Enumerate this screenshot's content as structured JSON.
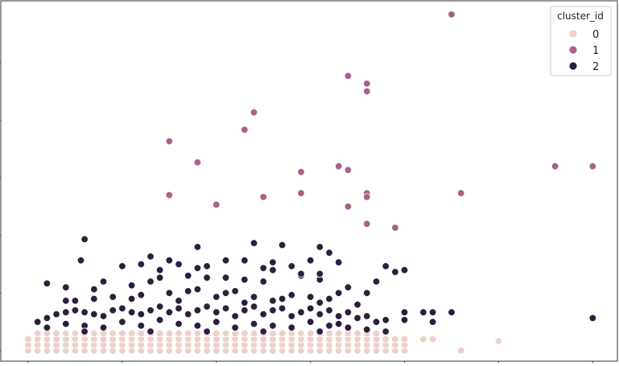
{
  "chart_data": {
    "type": "scatter",
    "title": "",
    "xlabel": "",
    "ylabel": "",
    "xlim": [
      0,
      30.5
    ],
    "ylim": [
      0,
      18
    ],
    "xticks": [
      0,
      5,
      10,
      15,
      20,
      25,
      30
    ],
    "yticks": [
      0,
      3,
      6,
      9,
      12,
      15
    ],
    "tick_labels_visible": false,
    "grid": false,
    "legend": {
      "title": "cluster_id",
      "placement": "top-right",
      "labels": [
        "0",
        "1",
        "2"
      ]
    },
    "series": [
      {
        "name": "0",
        "color": "#ecd0c9",
        "points": [
          [
            0.0,
            0.0
          ],
          [
            0.0,
            0.3
          ],
          [
            0.0,
            0.6
          ],
          [
            0.5,
            0.0
          ],
          [
            0.5,
            0.3
          ],
          [
            0.5,
            0.6
          ],
          [
            0.5,
            0.9
          ],
          [
            1.0,
            0.0
          ],
          [
            1.0,
            0.3
          ],
          [
            1.0,
            0.6
          ],
          [
            1.0,
            0.9
          ],
          [
            1.5,
            0.0
          ],
          [
            1.5,
            0.3
          ],
          [
            1.5,
            0.6
          ],
          [
            1.5,
            0.9
          ],
          [
            2.0,
            0.0
          ],
          [
            2.0,
            0.3
          ],
          [
            2.0,
            0.6
          ],
          [
            2.0,
            0.9
          ],
          [
            2.5,
            0.0
          ],
          [
            2.5,
            0.3
          ],
          [
            2.5,
            0.6
          ],
          [
            2.5,
            0.9
          ],
          [
            3.0,
            0.0
          ],
          [
            3.0,
            0.3
          ],
          [
            3.0,
            0.6
          ],
          [
            3.0,
            0.9
          ],
          [
            3.5,
            0.0
          ],
          [
            3.5,
            0.3
          ],
          [
            3.5,
            0.6
          ],
          [
            3.5,
            0.9
          ],
          [
            4.0,
            0.0
          ],
          [
            4.0,
            0.3
          ],
          [
            4.0,
            0.6
          ],
          [
            4.0,
            0.9
          ],
          [
            4.5,
            0.0
          ],
          [
            4.5,
            0.3
          ],
          [
            4.5,
            0.6
          ],
          [
            4.5,
            0.9
          ],
          [
            5.0,
            0.0
          ],
          [
            5.0,
            0.3
          ],
          [
            5.0,
            0.6
          ],
          [
            5.0,
            0.9
          ],
          [
            5.5,
            0.0
          ],
          [
            5.5,
            0.3
          ],
          [
            5.5,
            0.6
          ],
          [
            5.5,
            0.9
          ],
          [
            6.0,
            0.0
          ],
          [
            6.0,
            0.3
          ],
          [
            6.0,
            0.6
          ],
          [
            6.0,
            0.9
          ],
          [
            6.5,
            0.0
          ],
          [
            6.5,
            0.3
          ],
          [
            6.5,
            0.6
          ],
          [
            6.5,
            0.9
          ],
          [
            7.0,
            0.0
          ],
          [
            7.0,
            0.3
          ],
          [
            7.0,
            0.6
          ],
          [
            7.0,
            0.9
          ],
          [
            7.5,
            0.0
          ],
          [
            7.5,
            0.3
          ],
          [
            7.5,
            0.6
          ],
          [
            7.5,
            0.9
          ],
          [
            8.0,
            0.0
          ],
          [
            8.0,
            0.3
          ],
          [
            8.0,
            0.6
          ],
          [
            8.0,
            0.9
          ],
          [
            8.5,
            0.0
          ],
          [
            8.5,
            0.3
          ],
          [
            8.5,
            0.6
          ],
          [
            8.5,
            0.9
          ],
          [
            9.0,
            0.0
          ],
          [
            9.0,
            0.3
          ],
          [
            9.0,
            0.6
          ],
          [
            9.0,
            0.9
          ],
          [
            9.5,
            0.0
          ],
          [
            9.5,
            0.3
          ],
          [
            9.5,
            0.6
          ],
          [
            9.5,
            0.9
          ],
          [
            10.0,
            0.0
          ],
          [
            10.0,
            0.3
          ],
          [
            10.0,
            0.6
          ],
          [
            10.0,
            0.9
          ],
          [
            10.5,
            0.0
          ],
          [
            10.5,
            0.3
          ],
          [
            10.5,
            0.6
          ],
          [
            10.5,
            0.9
          ],
          [
            11.0,
            0.0
          ],
          [
            11.0,
            0.3
          ],
          [
            11.0,
            0.6
          ],
          [
            11.0,
            0.9
          ],
          [
            11.5,
            0.0
          ],
          [
            11.5,
            0.3
          ],
          [
            11.5,
            0.6
          ],
          [
            11.5,
            0.9
          ],
          [
            12.0,
            0.0
          ],
          [
            12.0,
            0.3
          ],
          [
            12.0,
            0.6
          ],
          [
            12.0,
            0.9
          ],
          [
            12.5,
            0.0
          ],
          [
            12.5,
            0.3
          ],
          [
            12.5,
            0.6
          ],
          [
            12.5,
            0.9
          ],
          [
            13.0,
            0.0
          ],
          [
            13.0,
            0.3
          ],
          [
            13.0,
            0.6
          ],
          [
            13.0,
            0.9
          ],
          [
            13.5,
            0.0
          ],
          [
            13.5,
            0.3
          ],
          [
            13.5,
            0.6
          ],
          [
            13.5,
            0.9
          ],
          [
            14.0,
            0.0
          ],
          [
            14.0,
            0.3
          ],
          [
            14.0,
            0.6
          ],
          [
            14.0,
            0.9
          ],
          [
            14.5,
            0.0
          ],
          [
            14.5,
            0.3
          ],
          [
            14.5,
            0.6
          ],
          [
            14.5,
            0.9
          ],
          [
            15.0,
            0.0
          ],
          [
            15.0,
            0.3
          ],
          [
            15.0,
            0.6
          ],
          [
            15.0,
            0.9
          ],
          [
            15.5,
            0.0
          ],
          [
            15.5,
            0.3
          ],
          [
            15.5,
            0.6
          ],
          [
            15.5,
            0.9
          ],
          [
            16.0,
            0.0
          ],
          [
            16.0,
            0.3
          ],
          [
            16.0,
            0.6
          ],
          [
            16.0,
            0.9
          ],
          [
            16.5,
            0.0
          ],
          [
            16.5,
            0.3
          ],
          [
            16.5,
            0.6
          ],
          [
            16.5,
            0.9
          ],
          [
            17.0,
            0.0
          ],
          [
            17.0,
            0.3
          ],
          [
            17.0,
            0.6
          ],
          [
            17.0,
            0.9
          ],
          [
            17.5,
            0.0
          ],
          [
            17.5,
            0.3
          ],
          [
            17.5,
            0.6
          ],
          [
            17.5,
            0.9
          ],
          [
            18.0,
            0.0
          ],
          [
            18.0,
            0.3
          ],
          [
            18.0,
            0.6
          ],
          [
            18.0,
            0.9
          ],
          [
            18.5,
            0.0
          ],
          [
            18.5,
            0.3
          ],
          [
            18.5,
            0.6
          ],
          [
            18.5,
            0.9
          ],
          [
            19.0,
            0.0
          ],
          [
            19.0,
            0.3
          ],
          [
            19.0,
            0.6
          ],
          [
            19.5,
            0.0
          ],
          [
            19.5,
            0.3
          ],
          [
            19.5,
            0.6
          ],
          [
            20.0,
            0.0
          ],
          [
            20.0,
            0.3
          ],
          [
            20.0,
            0.6
          ],
          [
            21.0,
            0.6
          ],
          [
            21.5,
            0.6
          ],
          [
            23.0,
            0.0
          ],
          [
            25.0,
            0.5
          ]
        ]
      },
      {
        "name": "1",
        "color": "#a8608c",
        "points": [
          [
            22.5,
            17.5
          ],
          [
            17.0,
            14.3
          ],
          [
            18.0,
            13.9
          ],
          [
            18.0,
            13.5
          ],
          [
            12.0,
            12.4
          ],
          [
            11.5,
            11.5
          ],
          [
            7.5,
            10.9
          ],
          [
            9.0,
            9.8
          ],
          [
            28.0,
            9.6
          ],
          [
            30.0,
            9.6
          ],
          [
            16.5,
            9.6
          ],
          [
            17.0,
            9.4
          ],
          [
            14.5,
            9.3
          ],
          [
            7.5,
            8.1
          ],
          [
            14.5,
            8.2
          ],
          [
            18.0,
            8.2
          ],
          [
            18.0,
            8.0
          ],
          [
            23.0,
            8.2
          ],
          [
            12.5,
            8.0
          ],
          [
            10.0,
            7.6
          ],
          [
            17.0,
            7.5
          ],
          [
            18.0,
            6.6
          ],
          [
            19.5,
            6.4
          ]
        ]
      },
      {
        "name": "2",
        "color": "#2d1e3e",
        "points": [
          [
            3.0,
            5.8
          ],
          [
            2.8,
            4.7
          ],
          [
            16.0,
            5.1
          ],
          [
            9.0,
            5.4
          ],
          [
            12.0,
            5.6
          ],
          [
            13.5,
            5.5
          ],
          [
            15.5,
            5.4
          ],
          [
            6.5,
            4.9
          ],
          [
            5.0,
            4.4
          ],
          [
            6.0,
            4.5
          ],
          [
            7.5,
            4.7
          ],
          [
            8.0,
            4.5
          ],
          [
            10.5,
            4.7
          ],
          [
            11.5,
            4.7
          ],
          [
            13.0,
            4.6
          ],
          [
            14.0,
            4.4
          ],
          [
            15.0,
            4.7
          ],
          [
            16.5,
            4.6
          ],
          [
            19.0,
            4.4
          ],
          [
            19.5,
            4.1
          ],
          [
            20.0,
            4.2
          ],
          [
            1.0,
            3.5
          ],
          [
            2.0,
            3.3
          ],
          [
            3.5,
            3.2
          ],
          [
            4.0,
            3.6
          ],
          [
            8.5,
            3.9
          ],
          [
            18.5,
            3.6
          ],
          [
            6.5,
            3.6
          ],
          [
            5.5,
            3.4
          ],
          [
            7.0,
            3.8
          ],
          [
            9.5,
            3.8
          ],
          [
            10.5,
            3.8
          ],
          [
            11.5,
            3.7
          ],
          [
            12.5,
            3.6
          ],
          [
            14.5,
            3.9
          ],
          [
            15.5,
            3.7
          ],
          [
            17.0,
            3.3
          ],
          [
            18.0,
            3.0
          ],
          [
            7.0,
            4.2
          ],
          [
            9.0,
            4.3
          ],
          [
            9.5,
            4.4
          ],
          [
            12.5,
            4.3
          ],
          [
            13.0,
            4.2
          ],
          [
            14.5,
            4.0
          ],
          [
            15.5,
            4.0
          ],
          [
            2.0,
            2.6
          ],
          [
            3.5,
            2.7
          ],
          [
            4.5,
            2.8
          ],
          [
            6.0,
            2.9
          ],
          [
            7.5,
            3.0
          ],
          [
            8.5,
            3.1
          ],
          [
            9.0,
            3.2
          ],
          [
            10.5,
            3.0
          ],
          [
            11.0,
            3.1
          ],
          [
            12.0,
            2.8
          ],
          [
            13.0,
            2.6
          ],
          [
            14.0,
            2.9
          ],
          [
            15.0,
            2.8
          ],
          [
            16.0,
            2.7
          ],
          [
            16.5,
            3.0
          ],
          [
            17.5,
            2.4
          ],
          [
            20.0,
            2.0
          ],
          [
            21.0,
            2.0
          ],
          [
            21.5,
            2.0
          ],
          [
            22.5,
            2.0
          ],
          [
            21.5,
            1.5
          ],
          [
            20.0,
            1.6
          ],
          [
            30.0,
            1.7
          ],
          [
            0.5,
            1.5
          ],
          [
            1.0,
            1.7
          ],
          [
            1.5,
            1.9
          ],
          [
            2.0,
            2.0
          ],
          [
            2.5,
            2.1
          ],
          [
            3.0,
            2.0
          ],
          [
            3.5,
            1.9
          ],
          [
            4.0,
            1.8
          ],
          [
            4.5,
            2.1
          ],
          [
            5.0,
            2.2
          ],
          [
            5.5,
            2.0
          ],
          [
            6.0,
            1.9
          ],
          [
            6.5,
            2.1
          ],
          [
            7.0,
            2.3
          ],
          [
            7.5,
            2.0
          ],
          [
            8.0,
            2.2
          ],
          [
            8.5,
            1.9
          ],
          [
            9.0,
            2.1
          ],
          [
            9.5,
            2.3
          ],
          [
            10.0,
            2.0
          ],
          [
            10.5,
            2.2
          ],
          [
            11.0,
            1.8
          ],
          [
            11.5,
            2.1
          ],
          [
            12.0,
            2.3
          ],
          [
            12.5,
            1.9
          ],
          [
            13.0,
            2.1
          ],
          [
            13.5,
            2.2
          ],
          [
            14.0,
            1.8
          ],
          [
            14.5,
            2.0
          ],
          [
            15.0,
            2.2
          ],
          [
            15.5,
            1.9
          ],
          [
            16.0,
            2.1
          ],
          [
            16.5,
            1.8
          ],
          [
            17.0,
            2.0
          ],
          [
            17.5,
            1.7
          ],
          [
            18.0,
            1.8
          ],
          [
            18.5,
            1.5
          ],
          [
            19.0,
            1.6
          ],
          [
            1.0,
            1.2
          ],
          [
            2.0,
            1.4
          ],
          [
            3.0,
            1.3
          ],
          [
            4.0,
            1.2
          ],
          [
            5.0,
            1.5
          ],
          [
            6.0,
            1.3
          ],
          [
            7.0,
            1.6
          ],
          [
            8.0,
            1.4
          ],
          [
            9.0,
            1.3
          ],
          [
            10.0,
            1.5
          ],
          [
            11.0,
            1.2
          ],
          [
            12.0,
            1.4
          ],
          [
            13.0,
            1.3
          ],
          [
            14.0,
            1.2
          ],
          [
            15.0,
            1.5
          ],
          [
            16.0,
            1.3
          ],
          [
            17.0,
            1.2
          ],
          [
            18.0,
            1.1
          ],
          [
            2.5,
            2.6
          ],
          [
            5.5,
            2.7
          ],
          [
            8.0,
            2.6
          ],
          [
            10.0,
            2.8
          ],
          [
            11.5,
            2.5
          ],
          [
            13.5,
            2.7
          ],
          [
            15.5,
            2.5
          ],
          [
            3.0,
            1.0
          ],
          [
            6.5,
            1.0
          ],
          [
            9.5,
            1.0
          ],
          [
            12.5,
            1.0
          ],
          [
            15.5,
            1.0
          ],
          [
            16.5,
            1.4
          ],
          [
            19.0,
            1.0
          ]
        ]
      }
    ]
  }
}
